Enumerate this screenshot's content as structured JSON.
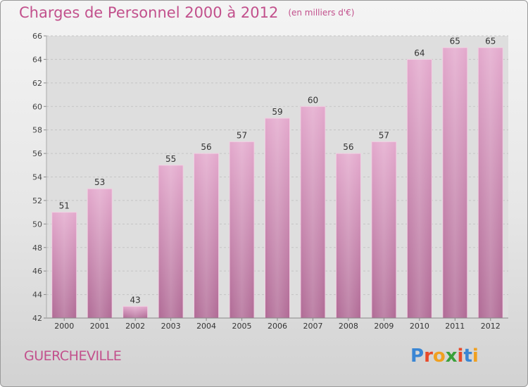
{
  "title": "Charges de Personnel 2000 à 2012",
  "subtitle": "(en milliers d'€)",
  "location": "GUERCHEVILLE",
  "logo": {
    "text": "Proxiti",
    "colors": [
      "#3a86d4",
      "#e84a2a",
      "#f0a020",
      "#3aa03a",
      "#e84a2a",
      "#3a86d4",
      "#f0a020"
    ]
  },
  "chart_data": {
    "type": "bar",
    "title": "Charges de Personnel 2000 à 2012",
    "subtitle": "(en milliers d'€)",
    "xlabel": "",
    "ylabel": "",
    "categories": [
      "2000",
      "2001",
      "2002",
      "2003",
      "2004",
      "2005",
      "2006",
      "2007",
      "2008",
      "2009",
      "2010",
      "2011",
      "2012"
    ],
    "values": [
      51,
      53,
      43,
      55,
      56,
      57,
      59,
      60,
      56,
      57,
      64,
      65,
      65
    ],
    "ylim": [
      42,
      66
    ],
    "yticks": [
      42,
      44,
      46,
      48,
      50,
      52,
      54,
      56,
      58,
      60,
      62,
      64,
      66
    ],
    "grid": true,
    "bar_color": "#d98cbb"
  }
}
